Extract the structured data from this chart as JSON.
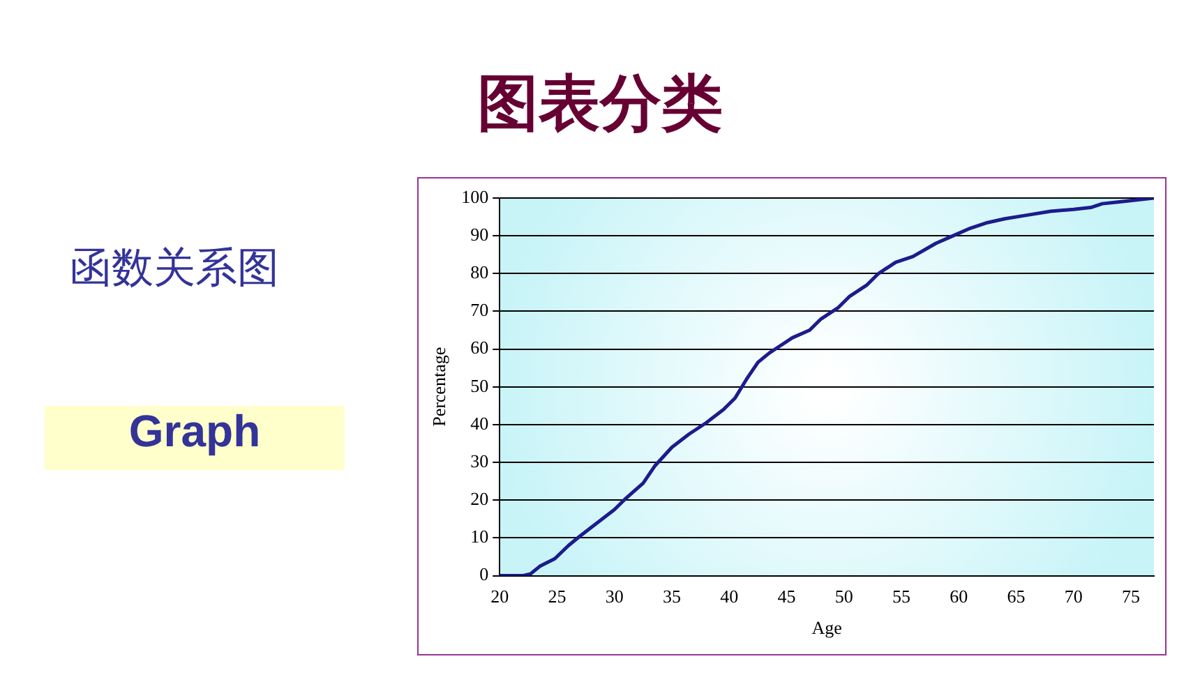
{
  "chart_data": {
    "type": "line",
    "title": "图表分类",
    "annotations": [
      "函数关系图",
      "Graph"
    ],
    "xlabel": "Age",
    "ylabel": "Percentage",
    "xlim": [
      20,
      77
    ],
    "xticks": [
      20,
      25,
      30,
      35,
      40,
      45,
      50,
      55,
      60,
      65,
      70,
      75
    ],
    "ylim": [
      0,
      100
    ],
    "yticks": [
      0,
      10,
      20,
      30,
      40,
      50,
      60,
      70,
      80,
      90,
      100
    ],
    "grid": "y",
    "legend": false,
    "marker": "none",
    "line_style": "solid",
    "series": [
      {
        "color": "#1c1c8c",
        "x": [
          20,
          22,
          22.7,
          23.5,
          24.8,
          26,
          27,
          28.5,
          30,
          31,
          32.5,
          33.5,
          35,
          36.5,
          38,
          39.5,
          40.5,
          41.5,
          42.5,
          43.5,
          44.5,
          45.5,
          47,
          48,
          49.5,
          50.5,
          52,
          53,
          54.5,
          56,
          58,
          59.5,
          61,
          62.5,
          64,
          66,
          68,
          70,
          71.5,
          72.5,
          74,
          77
        ],
        "values": [
          0,
          0,
          0.5,
          2.5,
          4.5,
          8,
          10.5,
          14,
          17.5,
          20.5,
          24.5,
          29,
          34,
          37.5,
          40.5,
          44,
          47,
          52,
          56.5,
          59,
          61,
          63,
          65,
          68,
          71,
          74,
          77,
          80,
          83,
          84.5,
          88,
          90,
          92,
          93.5,
          94.5,
          95.5,
          96.5,
          97,
          97.5,
          98.5,
          99,
          100
        ]
      }
    ]
  }
}
